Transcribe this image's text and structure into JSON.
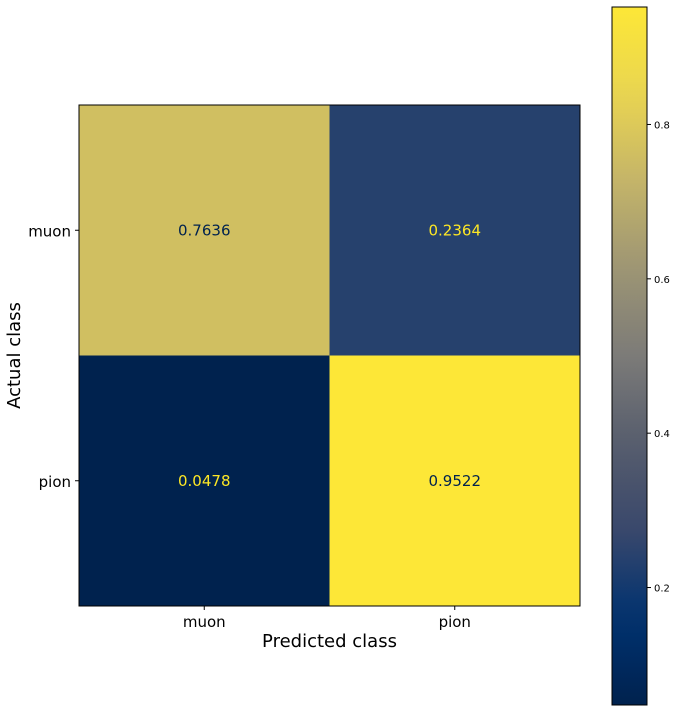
{
  "chart_data": {
    "type": "heatmap",
    "title": "",
    "xlabel": "Predicted class",
    "ylabel": "Actual class",
    "x_categories": [
      "muon",
      "pion"
    ],
    "y_categories": [
      "muon",
      "pion"
    ],
    "values": [
      [
        0.7636,
        0.2364
      ],
      [
        0.0478,
        0.9522
      ]
    ],
    "colormap": "cividis",
    "colorbar": {
      "range": [
        0.0478,
        0.9522
      ],
      "ticks": [
        0.2,
        0.4,
        0.6,
        0.8
      ],
      "tick_labels": [
        "0.2",
        "0.4",
        "0.6",
        "0.8"
      ]
    },
    "text_colors": {
      "on_dark": "#fde725",
      "on_light": "#00224e"
    },
    "grid": false
  }
}
